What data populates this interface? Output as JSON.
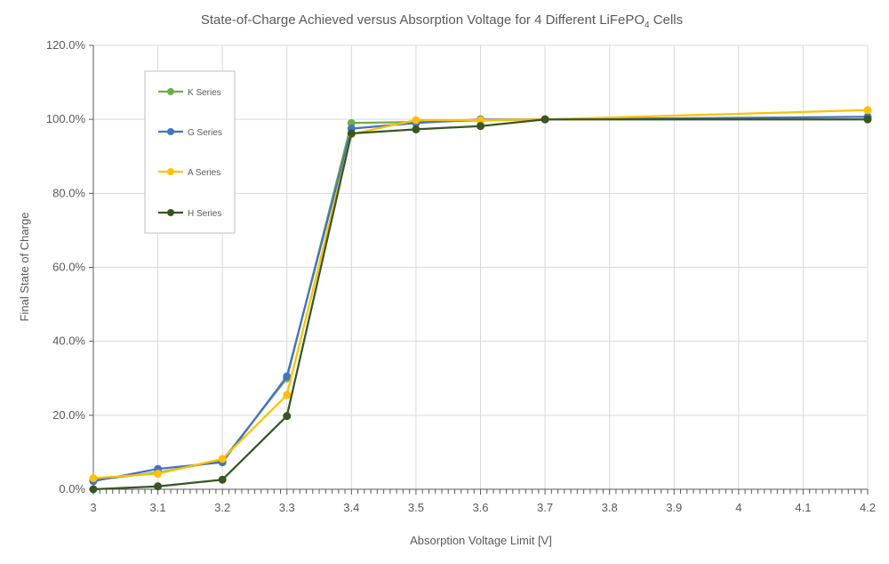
{
  "chart_data": {
    "type": "line",
    "title": {
      "prefix": "State-of-Charge Achieved versus Absorption Voltage for 4 Different LiFePO",
      "subscript": "4",
      "suffix": " Cells"
    },
    "xlabel": "Absorption Voltage Limit [V]",
    "ylabel": "Final State of Charge",
    "xlim": [
      3.0,
      4.2
    ],
    "ylim": [
      0,
      120
    ],
    "x_ticks": [
      3.0,
      3.1,
      3.2,
      3.3,
      3.4,
      3.5,
      3.6,
      3.7,
      3.8,
      3.9,
      4.0,
      4.1,
      4.2
    ],
    "x_tick_labels": [
      "3",
      "3.1",
      "3.2",
      "3.3",
      "3.4",
      "3.5",
      "3.6",
      "3.7",
      "3.8",
      "3.9",
      "4",
      "4.1",
      "4.2"
    ],
    "y_ticks": [
      0,
      20,
      40,
      60,
      80,
      100,
      120
    ],
    "y_tick_labels": [
      "0.0%",
      "20.0%",
      "40.0%",
      "60.0%",
      "80.0%",
      "100.0%",
      "120.0%"
    ],
    "grid": true,
    "legend_position": "top-left inside",
    "series": [
      {
        "name": "K Series",
        "color": "#70AD47",
        "x": [
          3.0,
          3.1,
          3.2,
          3.3,
          3.4,
          3.5,
          3.6,
          3.7
        ],
        "y": [
          2.5,
          4.5,
          7.8,
          30.0,
          99.0,
          99.3,
          99.7,
          100.0
        ]
      },
      {
        "name": "G Series",
        "color": "#4472C4",
        "x": [
          3.0,
          3.1,
          3.2,
          3.3,
          3.4,
          3.5,
          3.6,
          3.7,
          4.2
        ],
        "y": [
          2.2,
          5.5,
          7.3,
          30.5,
          97.5,
          99.0,
          100.0,
          100.0,
          100.7
        ]
      },
      {
        "name": "A Series",
        "color": "#FFC000",
        "x": [
          3.0,
          3.1,
          3.2,
          3.3,
          3.4,
          3.5,
          3.6,
          3.7,
          4.2
        ],
        "y": [
          3.0,
          4.2,
          8.2,
          25.5,
          96.0,
          99.8,
          99.8,
          100.0,
          102.5
        ]
      },
      {
        "name": "H Series",
        "color": "#375623",
        "x": [
          3.0,
          3.1,
          3.2,
          3.3,
          3.4,
          3.5,
          3.6,
          3.7,
          4.2
        ],
        "y": [
          0.0,
          0.8,
          2.6,
          19.8,
          96.2,
          97.3,
          98.2,
          100.0,
          100.0
        ]
      }
    ]
  }
}
